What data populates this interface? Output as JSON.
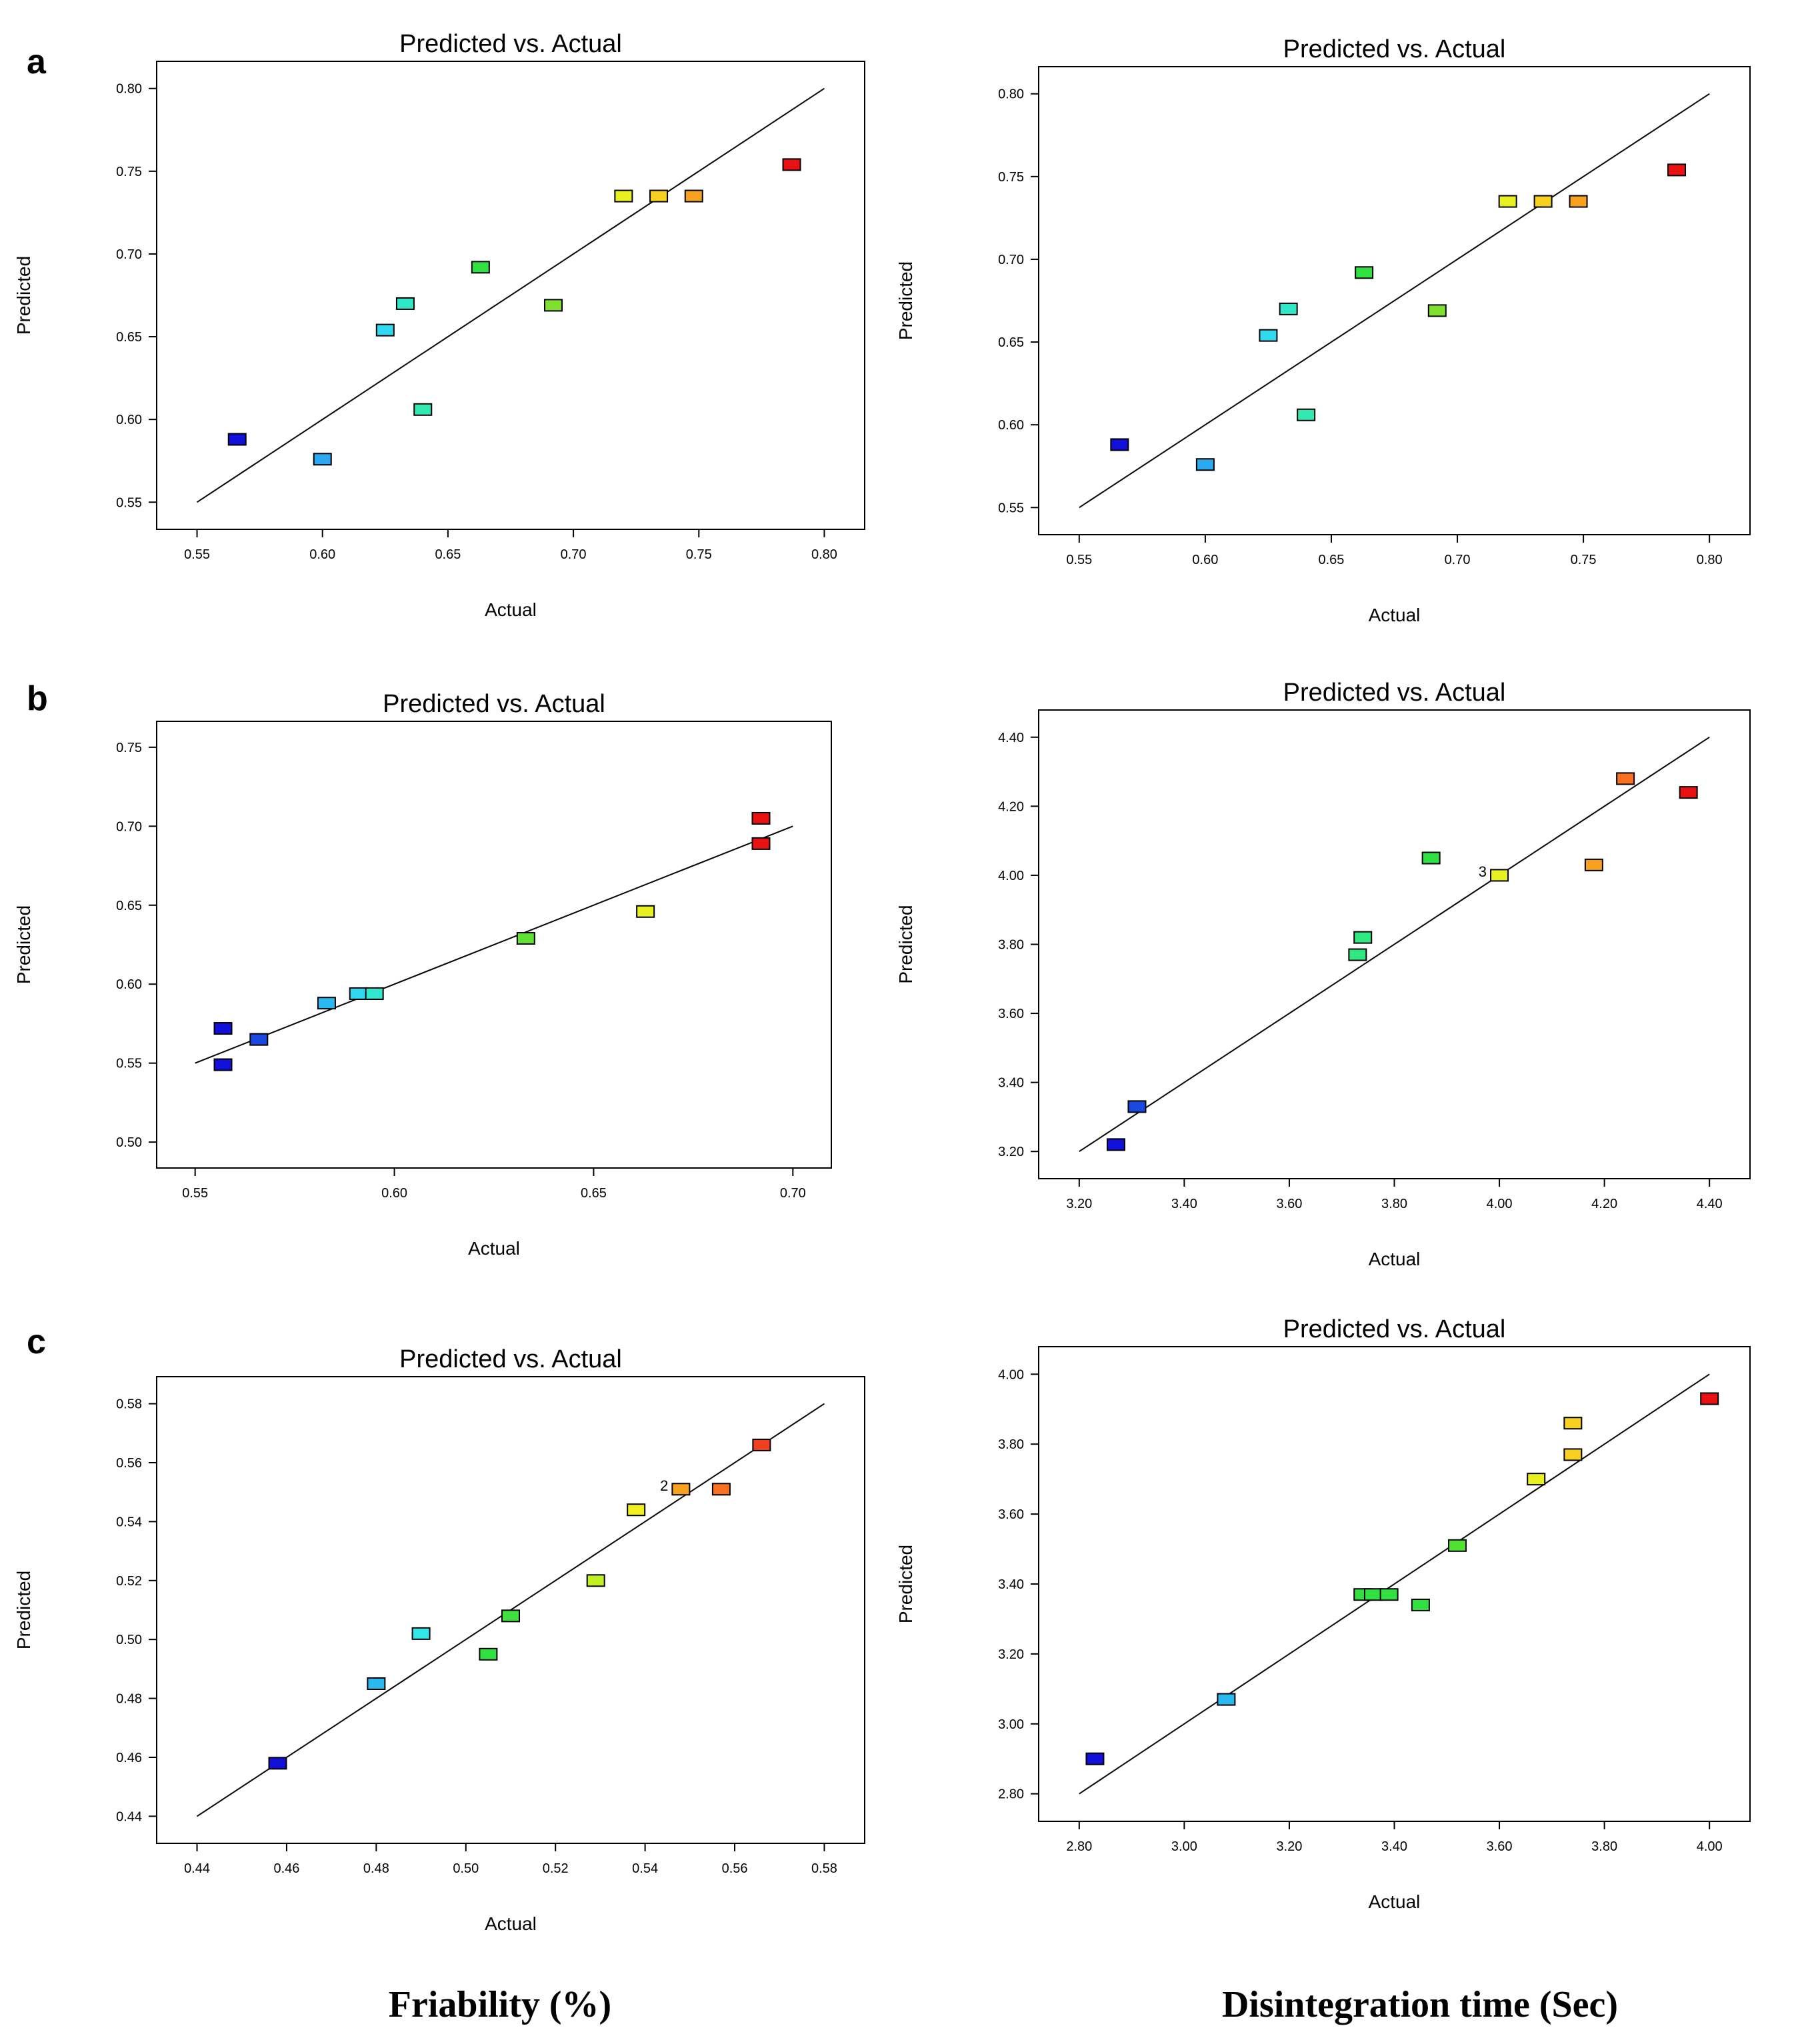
{
  "panel_labels": [
    "a",
    "b",
    "c"
  ],
  "captions": {
    "left": "Friability (%)",
    "right": "Disintegration time (Sec)"
  },
  "chart_data": [
    {
      "id": "a-left",
      "panel": "a",
      "type": "scatter",
      "title": "Predicted vs. Actual",
      "xlabel": "Actual",
      "ylabel": "Predicted",
      "xlim": [
        0.55,
        0.8
      ],
      "ylim": [
        0.55,
        0.8
      ],
      "xticks": [
        "0.55",
        "0.60",
        "0.65",
        "0.70",
        "0.75",
        "0.80"
      ],
      "yticks": [
        "0.55",
        "0.60",
        "0.65",
        "0.70",
        "0.75",
        "0.80"
      ],
      "grid": false,
      "fit_line": [
        [
          0.55,
          0.55
        ],
        [
          0.8,
          0.8
        ]
      ],
      "points": [
        {
          "x": 0.566,
          "y": 0.588,
          "color": "#1010d8"
        },
        {
          "x": 0.6,
          "y": 0.576,
          "color": "#2aa8f0"
        },
        {
          "x": 0.625,
          "y": 0.654,
          "color": "#30d8f0"
        },
        {
          "x": 0.633,
          "y": 0.67,
          "color": "#30e8c8"
        },
        {
          "x": 0.64,
          "y": 0.606,
          "color": "#30e8b0"
        },
        {
          "x": 0.663,
          "y": 0.692,
          "color": "#30e040"
        },
        {
          "x": 0.692,
          "y": 0.669,
          "color": "#80e030"
        },
        {
          "x": 0.72,
          "y": 0.735,
          "color": "#e8f020"
        },
        {
          "x": 0.734,
          "y": 0.735,
          "color": "#f8d020"
        },
        {
          "x": 0.748,
          "y": 0.735,
          "color": "#f8a020"
        },
        {
          "x": 0.787,
          "y": 0.754,
          "color": "#e81010"
        }
      ]
    },
    {
      "id": "a-right",
      "panel": "a",
      "type": "scatter",
      "title": "Predicted vs. Actual",
      "xlabel": "Actual",
      "ylabel": "Predicted",
      "xlim": [
        0.55,
        0.8
      ],
      "ylim": [
        0.55,
        0.8
      ],
      "xticks": [
        "0.55",
        "0.60",
        "0.65",
        "0.70",
        "0.75",
        "0.80"
      ],
      "yticks": [
        "0.55",
        "0.60",
        "0.65",
        "0.70",
        "0.75",
        "0.80"
      ],
      "grid": false,
      "fit_line": [
        [
          0.55,
          0.55
        ],
        [
          0.8,
          0.8
        ]
      ],
      "points": [
        {
          "x": 0.566,
          "y": 0.588,
          "color": "#1010d8"
        },
        {
          "x": 0.6,
          "y": 0.576,
          "color": "#2aa8f0"
        },
        {
          "x": 0.625,
          "y": 0.654,
          "color": "#30d8f0"
        },
        {
          "x": 0.633,
          "y": 0.67,
          "color": "#30e8c8"
        },
        {
          "x": 0.64,
          "y": 0.606,
          "color": "#30e8b0"
        },
        {
          "x": 0.663,
          "y": 0.692,
          "color": "#30e040"
        },
        {
          "x": 0.692,
          "y": 0.669,
          "color": "#80e030"
        },
        {
          "x": 0.72,
          "y": 0.735,
          "color": "#e8f020"
        },
        {
          "x": 0.734,
          "y": 0.735,
          "color": "#f8d020"
        },
        {
          "x": 0.748,
          "y": 0.735,
          "color": "#f8a020"
        },
        {
          "x": 0.787,
          "y": 0.754,
          "color": "#e81010"
        }
      ]
    },
    {
      "id": "b-left",
      "panel": "b",
      "type": "scatter",
      "title": "Predicted vs. Actual",
      "xlabel": "Actual",
      "ylabel": "Predicted",
      "xlim": [
        0.55,
        0.7
      ],
      "ylim": [
        0.5,
        0.75
      ],
      "xticks": [
        "0.55",
        "0.60",
        "0.65",
        "0.70"
      ],
      "yticks": [
        "0.50",
        "0.55",
        "0.60",
        "0.65",
        "0.70",
        "0.75"
      ],
      "grid": false,
      "fit_line": [
        [
          0.55,
          0.55
        ],
        [
          0.7,
          0.7
        ]
      ],
      "points": [
        {
          "x": 0.557,
          "y": 0.572,
          "color": "#1010d8"
        },
        {
          "x": 0.557,
          "y": 0.549,
          "color": "#1010d8"
        },
        {
          "x": 0.566,
          "y": 0.565,
          "color": "#1848e0"
        },
        {
          "x": 0.583,
          "y": 0.588,
          "color": "#2ab8f0"
        },
        {
          "x": 0.591,
          "y": 0.594,
          "color": "#30d8f0"
        },
        {
          "x": 0.595,
          "y": 0.594,
          "color": "#30e8d0"
        },
        {
          "x": 0.633,
          "y": 0.629,
          "color": "#60e030"
        },
        {
          "x": 0.663,
          "y": 0.646,
          "color": "#e8f020"
        },
        {
          "x": 0.692,
          "y": 0.705,
          "color": "#e81010"
        },
        {
          "x": 0.692,
          "y": 0.689,
          "color": "#e81010"
        }
      ]
    },
    {
      "id": "b-right",
      "panel": "b",
      "type": "scatter",
      "title": "Predicted vs. Actual",
      "xlabel": "Actual",
      "ylabel": "Predicted",
      "xlim": [
        3.2,
        4.4
      ],
      "ylim": [
        3.2,
        4.4
      ],
      "xticks": [
        "3.20",
        "3.40",
        "3.60",
        "3.80",
        "4.00",
        "4.20",
        "4.40"
      ],
      "yticks": [
        "3.20",
        "3.40",
        "3.60",
        "3.80",
        "4.00",
        "4.20",
        "4.40"
      ],
      "grid": false,
      "fit_line": [
        [
          3.2,
          3.2
        ],
        [
          4.4,
          4.4
        ]
      ],
      "points": [
        {
          "x": 3.27,
          "y": 3.22,
          "color": "#1010d8"
        },
        {
          "x": 3.31,
          "y": 3.33,
          "color": "#1848e0"
        },
        {
          "x": 3.73,
          "y": 3.77,
          "color": "#30e880"
        },
        {
          "x": 3.74,
          "y": 3.82,
          "color": "#30e880"
        },
        {
          "x": 3.87,
          "y": 4.05,
          "color": "#30e040"
        },
        {
          "x": 4.0,
          "y": 4.0,
          "color": "#e8f020",
          "label": "3"
        },
        {
          "x": 4.18,
          "y": 4.03,
          "color": "#f8a020"
        },
        {
          "x": 4.24,
          "y": 4.28,
          "color": "#f87020"
        },
        {
          "x": 4.36,
          "y": 4.24,
          "color": "#e81010"
        }
      ]
    },
    {
      "id": "c-left",
      "panel": "c",
      "type": "scatter",
      "title": "Predicted vs. Actual",
      "xlabel": "Actual",
      "ylabel": "Predicted",
      "xlim": [
        0.44,
        0.58
      ],
      "ylim": [
        0.44,
        0.58
      ],
      "xticks": [
        "0.44",
        "0.46",
        "0.48",
        "0.50",
        "0.52",
        "0.54",
        "0.56",
        "0.58"
      ],
      "yticks": [
        "0.44",
        "0.46",
        "0.48",
        "0.50",
        "0.52",
        "0.54",
        "0.56",
        "0.58"
      ],
      "grid": false,
      "fit_line": [
        [
          0.44,
          0.44
        ],
        [
          0.58,
          0.58
        ]
      ],
      "points": [
        {
          "x": 0.458,
          "y": 0.458,
          "color": "#1010d8"
        },
        {
          "x": 0.48,
          "y": 0.485,
          "color": "#2ab8f0"
        },
        {
          "x": 0.49,
          "y": 0.502,
          "color": "#30e8e8"
        },
        {
          "x": 0.505,
          "y": 0.495,
          "color": "#30e040"
        },
        {
          "x": 0.51,
          "y": 0.508,
          "color": "#40e040"
        },
        {
          "x": 0.529,
          "y": 0.52,
          "color": "#c0f020"
        },
        {
          "x": 0.538,
          "y": 0.544,
          "color": "#f0f020"
        },
        {
          "x": 0.548,
          "y": 0.551,
          "color": "#f8a020",
          "label": "2"
        },
        {
          "x": 0.557,
          "y": 0.551,
          "color": "#f87020"
        },
        {
          "x": 0.566,
          "y": 0.566,
          "color": "#f04020"
        }
      ]
    },
    {
      "id": "c-right",
      "panel": "c",
      "type": "scatter",
      "title": "Predicted vs. Actual",
      "xlabel": "Actual",
      "ylabel": "Predicted",
      "xlim": [
        2.8,
        4.0
      ],
      "ylim": [
        2.8,
        4.0
      ],
      "xticks": [
        "2.80",
        "3.00",
        "3.20",
        "3.40",
        "3.60",
        "3.80",
        "4.00"
      ],
      "yticks": [
        "2.80",
        "3.00",
        "3.20",
        "3.40",
        "3.60",
        "3.80",
        "4.00"
      ],
      "grid": false,
      "fit_line": [
        [
          2.8,
          2.8
        ],
        [
          4.0,
          4.0
        ]
      ],
      "points": [
        {
          "x": 2.83,
          "y": 2.9,
          "color": "#1010d8"
        },
        {
          "x": 3.08,
          "y": 3.07,
          "color": "#2ab8f0"
        },
        {
          "x": 3.34,
          "y": 3.37,
          "color": "#30e040"
        },
        {
          "x": 3.36,
          "y": 3.37,
          "color": "#30e040"
        },
        {
          "x": 3.39,
          "y": 3.37,
          "color": "#30e040"
        },
        {
          "x": 3.45,
          "y": 3.34,
          "color": "#30e040"
        },
        {
          "x": 3.52,
          "y": 3.51,
          "color": "#50e030"
        },
        {
          "x": 3.67,
          "y": 3.7,
          "color": "#e8f020"
        },
        {
          "x": 3.74,
          "y": 3.86,
          "color": "#f8d020"
        },
        {
          "x": 3.74,
          "y": 3.77,
          "color": "#f8d020"
        },
        {
          "x": 4.0,
          "y": 3.93,
          "color": "#e81010"
        }
      ]
    }
  ]
}
